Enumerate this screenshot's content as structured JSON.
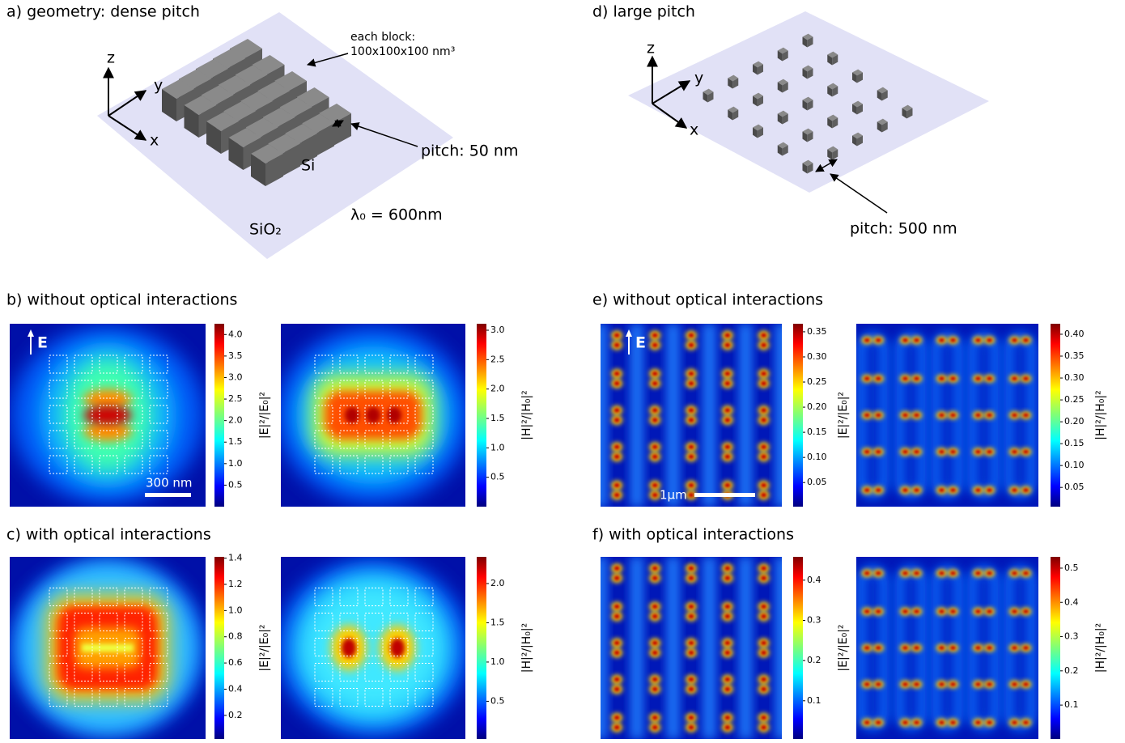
{
  "panels": {
    "a": {
      "label": "a) geometry: dense pitch",
      "axes": [
        "z",
        "y",
        "x"
      ],
      "block_note": [
        "each block:",
        "100x100x100 nm³"
      ],
      "pitch": "pitch: 50 nm",
      "particle": "Si",
      "substrate": "SiO₂",
      "wavelength": "λ₀ = 600nm"
    },
    "d": {
      "label": "d) large pitch",
      "axes": [
        "z",
        "y",
        "x"
      ],
      "pitch": "pitch: 500 nm"
    },
    "b": {
      "label": "b) without optical interactions",
      "field_marker": "E",
      "scale_bar": "300 nm",
      "maps": [
        {
          "colorbar_label": "|E|²/|E₀|²",
          "lim": [
            0,
            4.25
          ],
          "ticks": [
            0.5,
            {
              "value": 1,
              "label": "1.0"
            },
            1.5,
            {
              "value": 2,
              "label": "2.0"
            },
            2.5,
            {
              "value": 3,
              "label": "3.0"
            },
            3.5,
            {
              "value": 4,
              "label": "4.0"
            }
          ]
        },
        {
          "colorbar_label": "|H|²/|H₀|²",
          "lim": [
            0,
            3.11
          ],
          "ticks": [
            0.5,
            {
              "value": 1,
              "label": "1.0"
            },
            1.5,
            {
              "value": 2,
              "label": "2.0"
            },
            2.5,
            {
              "value": 3,
              "label": "3.0"
            }
          ]
        }
      ]
    },
    "c": {
      "label": "c) with optical interactions",
      "maps": [
        {
          "colorbar_label": "|E|²/|E₀|²",
          "lim": [
            0.02,
            1.41
          ],
          "ticks": [
            0.2,
            0.4,
            0.6,
            0.8,
            {
              "value": 1,
              "label": "1.0"
            },
            1.2,
            1.4
          ]
        },
        {
          "colorbar_label": "|H|²/|H₀|²",
          "lim": [
            0.02,
            2.34
          ],
          "ticks": [
            0.5,
            {
              "value": 1,
              "label": "1.0"
            },
            1.5,
            {
              "value": 2,
              "label": "2.0"
            }
          ]
        }
      ]
    },
    "e": {
      "label": "e) without optical interactions",
      "field_marker": "E",
      "scale_bar": "1μm",
      "maps": [
        {
          "colorbar_label": "|E|²/|E₀|²",
          "lim": [
            0.002,
            0.366
          ],
          "ticks": [
            0.05,
            {
              "value": 0.1,
              "label": "0.10"
            },
            0.15,
            {
              "value": 0.2,
              "label": "0.20"
            },
            0.25,
            {
              "value": 0.3,
              "label": "0.30"
            },
            0.35
          ]
        },
        {
          "colorbar_label": "|H|²/|H₀|²",
          "lim": [
            0.006,
            0.424
          ],
          "ticks": [
            0.05,
            {
              "value": 0.1,
              "label": "0.10"
            },
            0.15,
            {
              "value": 0.2,
              "label": "0.20"
            },
            0.25,
            {
              "value": 0.3,
              "label": "0.30"
            },
            0.35,
            {
              "value": 0.4,
              "label": "0.40"
            }
          ]
        }
      ]
    },
    "f": {
      "label": "f) with optical interactions",
      "maps": [
        {
          "colorbar_label": "|E|²/|E₀|²",
          "lim": [
            0.005,
            0.458
          ],
          "ticks": [
            0.1,
            0.2,
            0.3,
            0.4
          ]
        },
        {
          "colorbar_label": "|H|²/|H₀|²",
          "lim": [
            0.001,
            0.533
          ],
          "ticks": [
            0.1,
            0.2,
            0.3,
            0.4,
            0.5
          ]
        }
      ]
    }
  }
}
